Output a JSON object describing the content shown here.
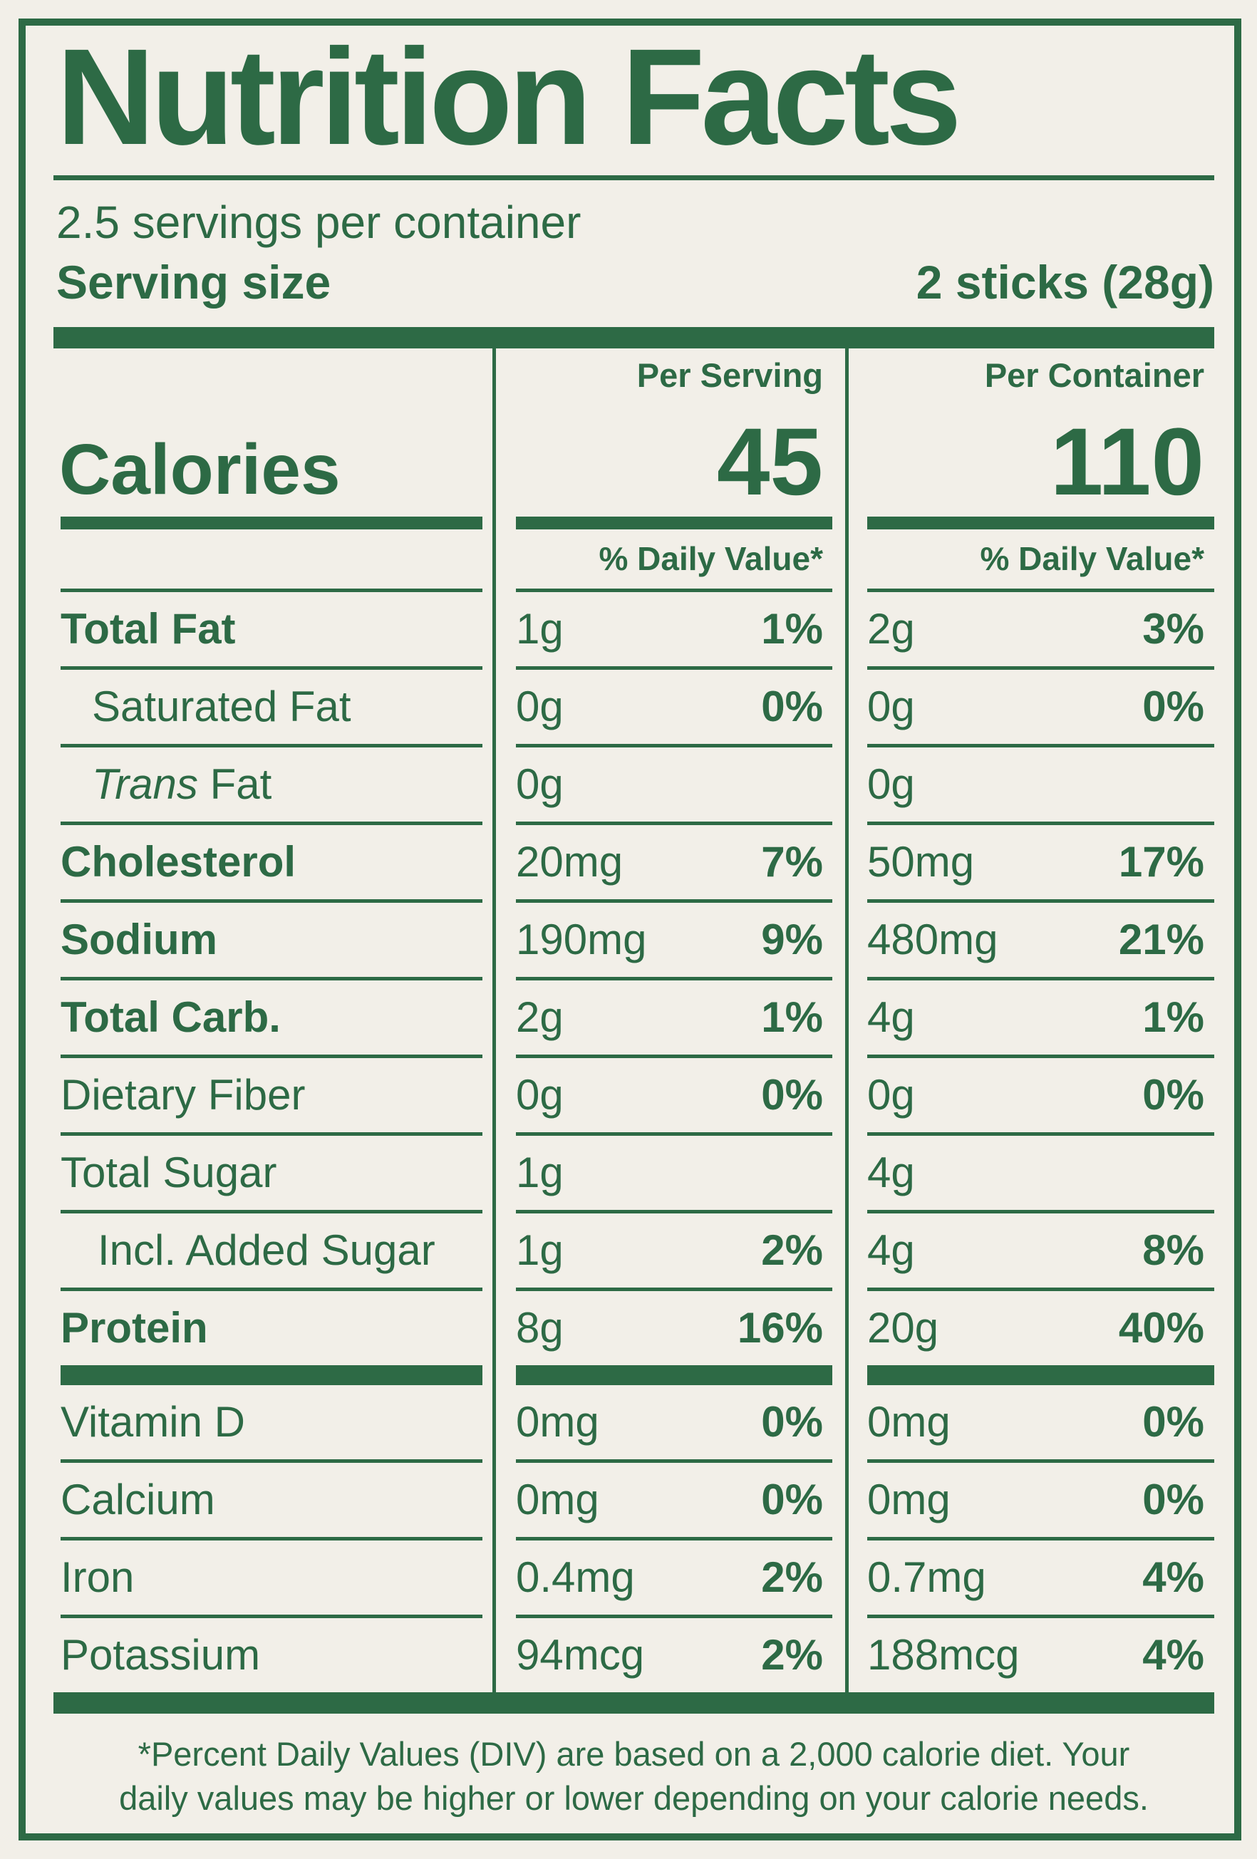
{
  "label": {
    "title": "Nutrition Facts",
    "servings_per_container": "2.5 servings per container",
    "serving_size_label": "Serving size",
    "serving_size_value": "2 sticks (28g)",
    "col_serving_header": "Per Serving",
    "col_container_header": "Per Container",
    "calories_label": "Calories",
    "calories_per_serving": "45",
    "calories_per_container": "110",
    "daily_value_header_serving": "% Daily Value*",
    "daily_value_header_container": "% Daily Value*",
    "footnote_line1": "*Percent Daily Values (DIV) are based on a 2,000 calorie diet. Your",
    "footnote_line2": "daily values may be higher or lower depending on your calorie needs.",
    "colors": {
      "green": "#2d6a45",
      "paper": "#f2efe8"
    }
  },
  "rows": [
    {
      "label": "Total Fat",
      "italic_prefix": "",
      "bold": true,
      "indent": 0,
      "s_amt": "1g",
      "s_dv": "1%",
      "c_amt": "2g",
      "c_dv": "3%",
      "rule": "thin"
    },
    {
      "label": "Saturated Fat",
      "italic_prefix": "",
      "bold": false,
      "indent": 1,
      "s_amt": "0g",
      "s_dv": "0%",
      "c_amt": "0g",
      "c_dv": "0%",
      "rule": "thin"
    },
    {
      "label": " Fat",
      "italic_prefix": "Trans",
      "bold": false,
      "indent": 1,
      "s_amt": "0g",
      "s_dv": "",
      "c_amt": "0g",
      "c_dv": "",
      "rule": "thin"
    },
    {
      "label": "Cholesterol",
      "italic_prefix": "",
      "bold": true,
      "indent": 0,
      "s_amt": "20mg",
      "s_dv": "7%",
      "c_amt": "50mg",
      "c_dv": "17%",
      "rule": "thin"
    },
    {
      "label": "Sodium",
      "italic_prefix": "",
      "bold": true,
      "indent": 0,
      "s_amt": "190mg",
      "s_dv": "9%",
      "c_amt": "480mg",
      "c_dv": "21%",
      "rule": "thin"
    },
    {
      "label": "Total Carb.",
      "italic_prefix": "",
      "bold": true,
      "indent": 0,
      "s_amt": "2g",
      "s_dv": "1%",
      "c_amt": "4g",
      "c_dv": "1%",
      "rule": "thin"
    },
    {
      "label": "Dietary Fiber",
      "italic_prefix": "",
      "bold": false,
      "indent": 0,
      "s_amt": "0g",
      "s_dv": "0%",
      "c_amt": "0g",
      "c_dv": "0%",
      "rule": "thin"
    },
    {
      "label": "Total Sugar",
      "italic_prefix": "",
      "bold": false,
      "indent": 0,
      "s_amt": "1g",
      "s_dv": "",
      "c_amt": "4g",
      "c_dv": "",
      "rule": "thin"
    },
    {
      "label": "Incl. Added Sugar",
      "italic_prefix": "",
      "bold": false,
      "indent": 2,
      "s_amt": "1g",
      "s_dv": "2%",
      "c_amt": "4g",
      "c_dv": "8%",
      "rule": "thin"
    },
    {
      "label": "Protein",
      "italic_prefix": "",
      "bold": true,
      "indent": 0,
      "s_amt": "8g",
      "s_dv": "16%",
      "c_amt": "20g",
      "c_dv": "40%",
      "rule": "thick"
    },
    {
      "label": "Vitamin D",
      "italic_prefix": "",
      "bold": false,
      "indent": 0,
      "s_amt": "0mg",
      "s_dv": "0%",
      "c_amt": "0mg",
      "c_dv": "0%",
      "rule": "thin"
    },
    {
      "label": "Calcium",
      "italic_prefix": "",
      "bold": false,
      "indent": 0,
      "s_amt": "0mg",
      "s_dv": "0%",
      "c_amt": "0mg",
      "c_dv": "0%",
      "rule": "thin"
    },
    {
      "label": "Iron",
      "italic_prefix": "",
      "bold": false,
      "indent": 0,
      "s_amt": "0.4mg",
      "s_dv": "2%",
      "c_amt": "0.7mg",
      "c_dv": "4%",
      "rule": "thin"
    },
    {
      "label": "Potassium",
      "italic_prefix": "",
      "bold": false,
      "indent": 0,
      "s_amt": "94mcg",
      "s_dv": "2%",
      "c_amt": "188mcg",
      "c_dv": "4%",
      "rule": "none"
    }
  ]
}
